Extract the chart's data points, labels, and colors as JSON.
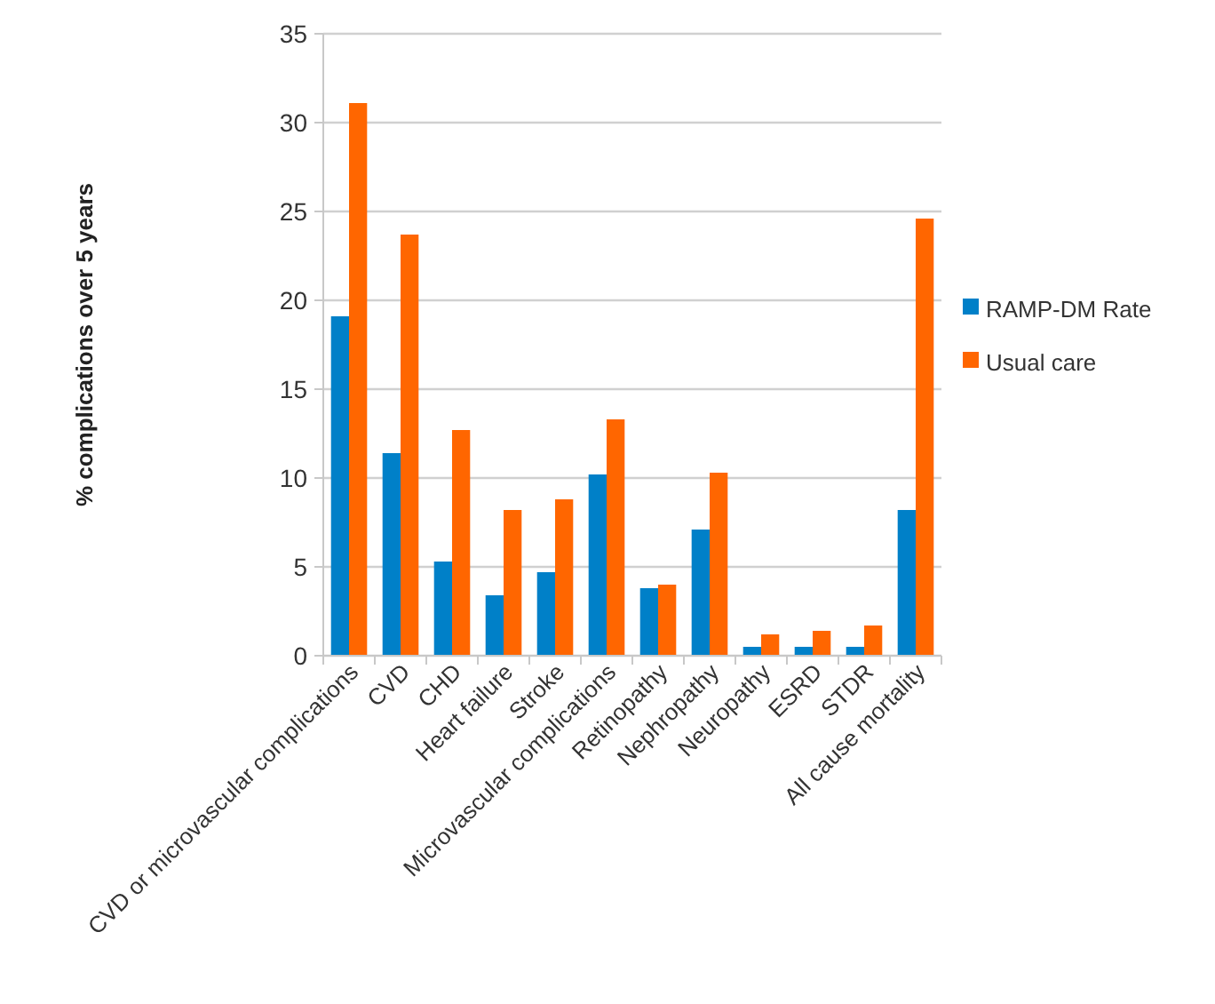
{
  "chart_data": {
    "type": "bar",
    "ylabel": "% complications over 5 years",
    "categories": [
      "CVD or microvascular complications",
      "CVD",
      "CHD",
      "Heart failure",
      "Stroke",
      "Microvascular complications",
      "Retinopathy",
      "Nephropathy",
      "Neuropathy",
      "ESRD",
      "STDR",
      "All cause mortality"
    ],
    "series": [
      {
        "name": "RAMP-DM Rate",
        "color": "#0080c8",
        "values": [
          19.1,
          11.4,
          5.3,
          3.4,
          4.7,
          10.2,
          3.8,
          7.1,
          0.5,
          0.5,
          0.5,
          8.2
        ]
      },
      {
        "name": "Usual care",
        "color": "#ff6600",
        "values": [
          31.1,
          23.7,
          12.7,
          8.2,
          8.8,
          13.3,
          4.0,
          10.3,
          1.2,
          1.4,
          1.7,
          24.6
        ]
      }
    ],
    "ylim": [
      0,
      35
    ],
    "yticks": [
      0,
      5,
      10,
      15,
      20,
      25,
      30,
      35
    ],
    "grid": "y",
    "legend": "right"
  }
}
